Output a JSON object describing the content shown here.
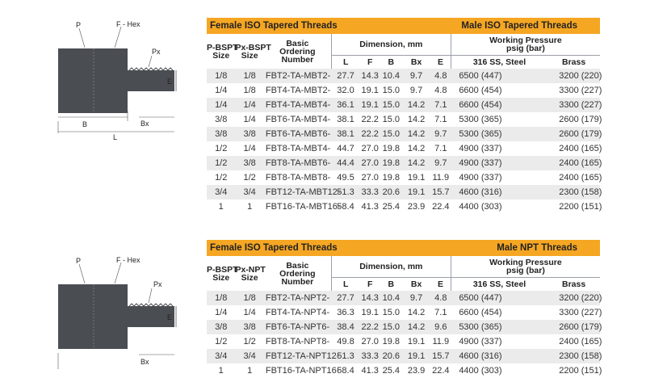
{
  "tables": [
    {
      "banner_left": "Female  ISO Tapered Threads",
      "banner_right": "Male ISO Tapered Threads",
      "col_p": "P-BSPT\nSize",
      "col_px": "Px-BSPT\nSize",
      "col_code": "Basic\nOrdering\nNumber",
      "dimension_label": "Dimension, mm",
      "pressure_label": "Working Pressure\npsig (bar)",
      "dims": [
        "L",
        "F",
        "B",
        "Bx",
        "E"
      ],
      "ss_label": "316 SS, Steel",
      "brass_label": "Brass",
      "rows": [
        {
          "p": "1/8",
          "px": "1/8",
          "code": "FBT2-TA-MBT2-",
          "L": "27.7",
          "F": "14.3",
          "B": "10.4",
          "Bx": "9.7",
          "E": "4.8",
          "ss": "6500 (447)",
          "brass": "3200 (220)"
        },
        {
          "p": "1/4",
          "px": "1/8",
          "code": "FBT4-TA-MBT2-",
          "L": "32.0",
          "F": "19.1",
          "B": "15.0",
          "Bx": "9.7",
          "E": "4.8",
          "ss": "6600 (454)",
          "brass": "3300 (227)"
        },
        {
          "p": "1/4",
          "px": "1/4",
          "code": "FBT4-TA-MBT4-",
          "L": "36.1",
          "F": "19.1",
          "B": "15.0",
          "Bx": "14.2",
          "E": "7.1",
          "ss": "6600 (454)",
          "brass": "3300 (227)"
        },
        {
          "p": "3/8",
          "px": "1/4",
          "code": "FBT6-TA-MBT4-",
          "L": "38.1",
          "F": "22.2",
          "B": "15.0",
          "Bx": "14.2",
          "E": "7.1",
          "ss": "5300 (365)",
          "brass": "2600 (179)"
        },
        {
          "p": "3/8",
          "px": "3/8",
          "code": "FBT6-TA-MBT6-",
          "L": "38.1",
          "F": "22.2",
          "B": "15.0",
          "Bx": "14.2",
          "E": "9.7",
          "ss": "5300 (365)",
          "brass": "2600 (179)"
        },
        {
          "p": "1/2",
          "px": "1/4",
          "code": "FBT8-TA-MBT4-",
          "L": "44.7",
          "F": "27.0",
          "B": "19.8",
          "Bx": "14.2",
          "E": "7.1",
          "ss": "4900 (337)",
          "brass": "2400 (165)"
        },
        {
          "p": "1/2",
          "px": "3/8",
          "code": "FBT8-TA-MBT6-",
          "L": "44.4",
          "F": "27.0",
          "B": "19.8",
          "Bx": "14.2",
          "E": "9.7",
          "ss": "4900 (337)",
          "brass": "2400 (165)"
        },
        {
          "p": "1/2",
          "px": "1/2",
          "code": "FBT8-TA-MBT8-",
          "L": "49.5",
          "F": "27.0",
          "B": "19.8",
          "Bx": "19.1",
          "E": "11.9",
          "ss": "4900 (337)",
          "brass": "2400 (165)"
        },
        {
          "p": "3/4",
          "px": "3/4",
          "code": "FBT12-TA-MBT12-",
          "L": "51.3",
          "F": "33.3",
          "B": "20.6",
          "Bx": "19.1",
          "E": "15.7",
          "ss": "4600 (316)",
          "brass": "2300 (158)"
        },
        {
          "p": "1",
          "px": "1",
          "code": "FBT16-TA-MBT16-",
          "L": "58.4",
          "F": "41.3",
          "B": "25.4",
          "Bx": "23.9",
          "E": "22.4",
          "ss": "4400 (303)",
          "brass": "2200 (151)"
        }
      ]
    },
    {
      "banner_left": "Female ISO Tapered Threads",
      "banner_right": "Male NPT Threads",
      "col_p": "P-BSPT\nSize",
      "col_px": "Px-NPT\nSize",
      "col_code": "Basic\nOrdering\nNumber",
      "dimension_label": "Dimension, mm",
      "pressure_label": "Working Pressure\npsig (bar)",
      "dims": [
        "L",
        "F",
        "B",
        "Bx",
        "E"
      ],
      "ss_label": "316 SS, Steel",
      "brass_label": "Brass",
      "rows": [
        {
          "p": "1/8",
          "px": "1/8",
          "code": "FBT2-TA-NPT2-",
          "L": "27.7",
          "F": "14.3",
          "B": "10.4",
          "Bx": "9.7",
          "E": "4.8",
          "ss": "6500 (447)",
          "brass": "3200 (220)"
        },
        {
          "p": "1/4",
          "px": "1/4",
          "code": "FBT4-TA-NPT4-",
          "L": "36.3",
          "F": "19.1",
          "B": "15.0",
          "Bx": "14.2",
          "E": "7.1",
          "ss": "6600 (454)",
          "brass": "3300 (227)"
        },
        {
          "p": "3/8",
          "px": "3/8",
          "code": "FBT6-TA-NPT6-",
          "L": "38.4",
          "F": "22.2",
          "B": "15.0",
          "Bx": "14.2",
          "E": "9.6",
          "ss": "5300 (365)",
          "brass": "2600 (179)"
        },
        {
          "p": "1/2",
          "px": "1/2",
          "code": "FBT8-TA-NPT8-",
          "L": "49.8",
          "F": "27.0",
          "B": "19.8",
          "Bx": "19.1",
          "E": "11.9",
          "ss": "4900 (337)",
          "brass": "2400 (165)"
        },
        {
          "p": "3/4",
          "px": "3/4",
          "code": "FBT12-TA-NPT12-",
          "L": "51.3",
          "F": "33.3",
          "B": "20.6",
          "Bx": "19.1",
          "E": "15.7",
          "ss": "4600 (316)",
          "brass": "2300 (158)"
        },
        {
          "p": "1",
          "px": "1",
          "code": "FBT16-TA-NPT16-",
          "L": "58.4",
          "F": "41.3",
          "B": "25.4",
          "Bx": "23.9",
          "E": "22.4",
          "ss": "4400 (303)",
          "brass": "2200 (151)"
        }
      ]
    }
  ],
  "diagram_labels": {
    "p": "P",
    "f_hex": "F - Hex",
    "px": "Px",
    "e": "E",
    "b": "B",
    "bx": "Bx",
    "l": "L"
  },
  "colors": {
    "banner": "#f5a623",
    "zebra": "#ebebeb",
    "body": "#4a4d52"
  }
}
